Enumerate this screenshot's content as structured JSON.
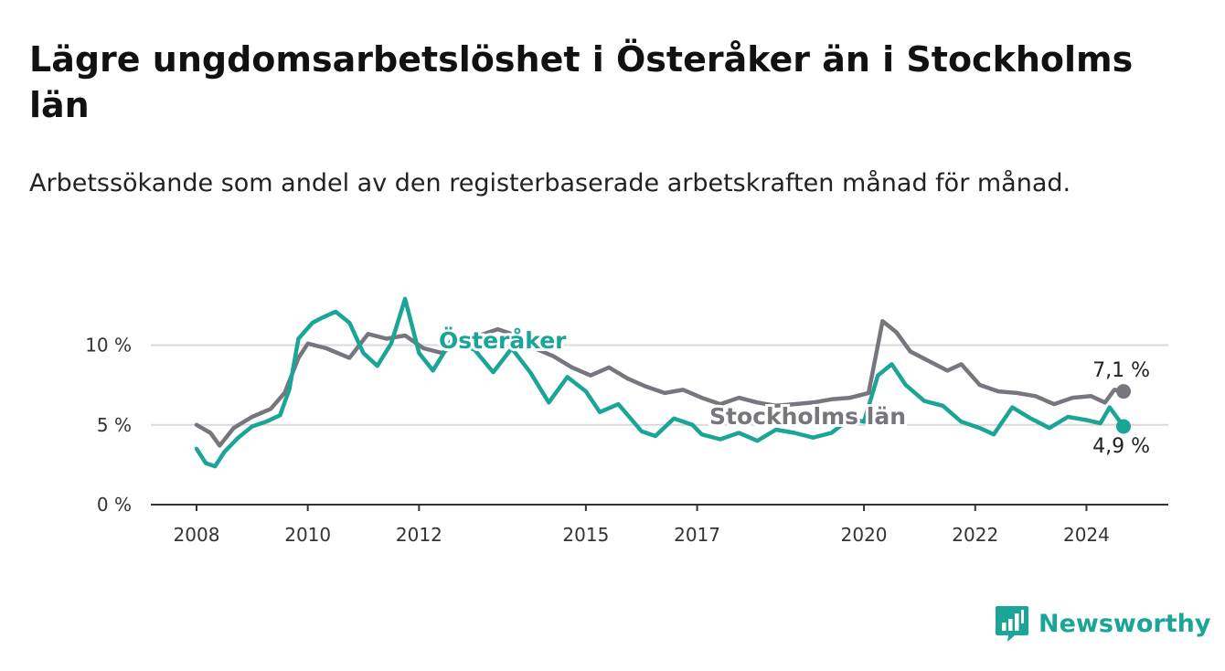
{
  "title": "Lägre ungdomsarbetslöshet i Österåker än i Stockholms län",
  "subtitle": "Arbetssökande som andel av den registerbaserade arbetskraften månad för månad.",
  "brand": {
    "name": "Newsworthy",
    "color": "#1aa596",
    "icon": "bar-chart-logo-icon"
  },
  "colors": {
    "osteraker": "#1aa596",
    "stockholm": "#77767f",
    "grid": "#d9d9d9",
    "axis": "#333333"
  },
  "chart_data": {
    "type": "line",
    "title": "Lägre ungdomsarbetslöshet i Österåker än i Stockholms län",
    "subtitle": "Arbetssökande som andel av den registerbaserade arbetskraften månad för månad.",
    "xlabel": "",
    "ylabel": "",
    "x_ticks": [
      "2008",
      "2010",
      "2012",
      "2015",
      "2017",
      "2020",
      "2022",
      "2024"
    ],
    "y_ticks": [
      "0 %",
      "5 %",
      "10 %"
    ],
    "ylim": [
      0,
      13
    ],
    "xlim": [
      "2008-01",
      "2024-09"
    ],
    "grid": true,
    "legend": "inline labels",
    "series": [
      {
        "name": "Österåker",
        "color": "#1aa596",
        "end_label": "4,9 %",
        "points": [
          [
            "2008-01",
            3.5
          ],
          [
            "2008-03",
            2.6
          ],
          [
            "2008-05",
            2.4
          ],
          [
            "2008-07",
            3.3
          ],
          [
            "2008-10",
            4.2
          ],
          [
            "2009-01",
            4.9
          ],
          [
            "2009-04",
            5.2
          ],
          [
            "2009-07",
            5.6
          ],
          [
            "2009-09",
            7.2
          ],
          [
            "2009-11",
            10.4
          ],
          [
            "2010-02",
            11.4
          ],
          [
            "2010-04",
            11.7
          ],
          [
            "2010-07",
            12.1
          ],
          [
            "2010-10",
            11.4
          ],
          [
            "2011-01",
            9.5
          ],
          [
            "2011-04",
            8.7
          ],
          [
            "2011-07",
            10.1
          ],
          [
            "2011-10",
            12.9
          ],
          [
            "2012-01",
            9.5
          ],
          [
            "2012-04",
            8.4
          ],
          [
            "2012-08",
            10.3
          ],
          [
            "2013-01",
            9.7
          ],
          [
            "2013-05",
            8.3
          ],
          [
            "2013-09",
            9.8
          ],
          [
            "2014-01",
            8.3
          ],
          [
            "2014-05",
            6.4
          ],
          [
            "2014-09",
            8.0
          ],
          [
            "2015-01",
            7.1
          ],
          [
            "2015-04",
            5.8
          ],
          [
            "2015-08",
            6.3
          ],
          [
            "2016-01",
            4.6
          ],
          [
            "2016-04",
            4.3
          ],
          [
            "2016-08",
            5.4
          ],
          [
            "2016-12",
            5.0
          ],
          [
            "2017-02",
            4.4
          ],
          [
            "2017-06",
            4.1
          ],
          [
            "2017-10",
            4.5
          ],
          [
            "2018-02",
            4.0
          ],
          [
            "2018-06",
            4.7
          ],
          [
            "2018-10",
            4.5
          ],
          [
            "2019-02",
            4.2
          ],
          [
            "2019-06",
            4.5
          ],
          [
            "2019-10",
            5.4
          ],
          [
            "2020-01",
            5.2
          ],
          [
            "2020-04",
            8.1
          ],
          [
            "2020-07",
            8.8
          ],
          [
            "2020-10",
            7.5
          ],
          [
            "2021-02",
            6.5
          ],
          [
            "2021-06",
            6.2
          ],
          [
            "2021-10",
            5.2
          ],
          [
            "2022-02",
            4.8
          ],
          [
            "2022-05",
            4.4
          ],
          [
            "2022-09",
            6.1
          ],
          [
            "2023-01",
            5.4
          ],
          [
            "2023-05",
            4.8
          ],
          [
            "2023-09",
            5.5
          ],
          [
            "2024-01",
            5.3
          ],
          [
            "2024-04",
            5.1
          ],
          [
            "2024-06",
            6.1
          ],
          [
            "2024-09",
            4.9
          ]
        ]
      },
      {
        "name": "Stockholms län",
        "color": "#77767f",
        "end_label": "7,1 %",
        "points": [
          [
            "2008-01",
            5.0
          ],
          [
            "2008-04",
            4.5
          ],
          [
            "2008-06",
            3.7
          ],
          [
            "2008-09",
            4.8
          ],
          [
            "2009-01",
            5.5
          ],
          [
            "2009-05",
            6.0
          ],
          [
            "2009-08",
            7.0
          ],
          [
            "2009-11",
            9.2
          ],
          [
            "2010-01",
            10.1
          ],
          [
            "2010-05",
            9.8
          ],
          [
            "2010-10",
            9.2
          ],
          [
            "2011-02",
            10.7
          ],
          [
            "2011-06",
            10.4
          ],
          [
            "2011-10",
            10.6
          ],
          [
            "2012-02",
            9.8
          ],
          [
            "2012-06",
            9.5
          ],
          [
            "2012-10",
            10.3
          ],
          [
            "2013-02",
            10.6
          ],
          [
            "2013-06",
            11.0
          ],
          [
            "2013-10",
            10.6
          ],
          [
            "2014-02",
            9.8
          ],
          [
            "2014-06",
            9.3
          ],
          [
            "2014-10",
            8.6
          ],
          [
            "2015-02",
            8.1
          ],
          [
            "2015-06",
            8.6
          ],
          [
            "2015-10",
            7.9
          ],
          [
            "2016-02",
            7.4
          ],
          [
            "2016-06",
            7.0
          ],
          [
            "2016-10",
            7.2
          ],
          [
            "2017-02",
            6.7
          ],
          [
            "2017-06",
            6.3
          ],
          [
            "2017-10",
            6.7
          ],
          [
            "2018-02",
            6.4
          ],
          [
            "2018-06",
            6.2
          ],
          [
            "2018-10",
            6.3
          ],
          [
            "2019-02",
            6.4
          ],
          [
            "2019-06",
            6.6
          ],
          [
            "2019-10",
            6.7
          ],
          [
            "2020-02",
            7.0
          ],
          [
            "2020-05",
            11.5
          ],
          [
            "2020-08",
            10.8
          ],
          [
            "2020-11",
            9.6
          ],
          [
            "2021-03",
            9.0
          ],
          [
            "2021-07",
            8.4
          ],
          [
            "2021-10",
            8.8
          ],
          [
            "2022-02",
            7.5
          ],
          [
            "2022-06",
            7.1
          ],
          [
            "2022-10",
            7.0
          ],
          [
            "2023-02",
            6.8
          ],
          [
            "2023-06",
            6.3
          ],
          [
            "2023-10",
            6.7
          ],
          [
            "2024-02",
            6.8
          ],
          [
            "2024-05",
            6.4
          ],
          [
            "2024-07",
            7.2
          ],
          [
            "2024-09",
            7.1
          ]
        ]
      }
    ]
  }
}
